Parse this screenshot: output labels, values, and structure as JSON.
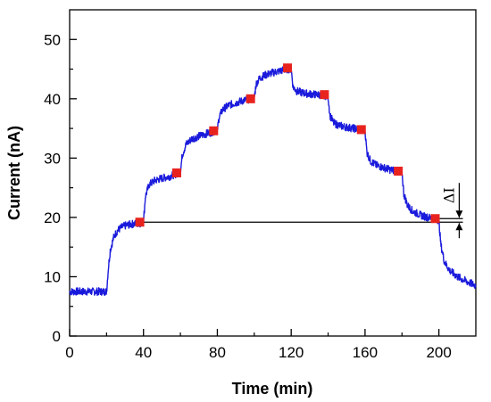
{
  "chart_data": {
    "type": "line",
    "title": "",
    "xlabel": "Time (min)",
    "ylabel": "Current (nA)",
    "xlim": [
      0,
      220
    ],
    "ylim": [
      0,
      55
    ],
    "x_ticks": [
      "0",
      "40",
      "80",
      "120",
      "160",
      "200"
    ],
    "y_ticks": [
      "0",
      "10",
      "20",
      "30",
      "40",
      "50"
    ],
    "grid": false,
    "legend": "none",
    "series": [
      {
        "color": "#1a1adc",
        "x": [
          0,
          20,
          21,
          22,
          24,
          26,
          28,
          30,
          34,
          38,
          40,
          41,
          43,
          46,
          50,
          54,
          58,
          60,
          61,
          63,
          66,
          70,
          74,
          78,
          80,
          81,
          83,
          86,
          90,
          94,
          98,
          100,
          101,
          103,
          106,
          110,
          114,
          118,
          120,
          121,
          123,
          126,
          130,
          134,
          138,
          140,
          141,
          143,
          146,
          150,
          154,
          158,
          160,
          161,
          163,
          166,
          170,
          174,
          178,
          180,
          181,
          183,
          186,
          190,
          194,
          198,
          200,
          201,
          203,
          206,
          210,
          215,
          220
        ],
        "y": [
          7.5,
          7.5,
          11.5,
          14.5,
          16.8,
          17.8,
          18.3,
          18.6,
          18.9,
          19.0,
          19.2,
          23.5,
          25.5,
          26.2,
          26.6,
          26.9,
          27.4,
          27.6,
          30.5,
          32.3,
          33.2,
          33.7,
          34.1,
          34.5,
          34.7,
          37.0,
          38.2,
          38.9,
          39.3,
          39.7,
          40.0,
          40.2,
          42.5,
          43.5,
          44.0,
          44.4,
          44.7,
          45.0,
          45.0,
          42.0,
          41.3,
          41.0,
          40.8,
          40.7,
          40.6,
          40.4,
          37.2,
          35.9,
          35.5,
          35.2,
          35.0,
          34.8,
          34.6,
          31.0,
          29.5,
          28.8,
          28.4,
          28.0,
          27.8,
          27.6,
          24.0,
          22.0,
          21.0,
          20.4,
          20.0,
          19.8,
          19.5,
          15.5,
          12.5,
          11.0,
          10.0,
          9.2,
          8.5
        ]
      }
    ],
    "markers": {
      "color": "#e8231e",
      "x": [
        38,
        58,
        78,
        98,
        118,
        138,
        158,
        178,
        198
      ],
      "y": [
        19.2,
        27.5,
        34.6,
        40.0,
        45.2,
        40.7,
        34.8,
        27.8,
        19.8
      ]
    },
    "reference_line": {
      "y": 19.2,
      "x_start": 38,
      "x_end": 213
    },
    "annotation": {
      "text": "ΔI",
      "x": 211,
      "y_from": 19.2,
      "y_to": 19.8
    }
  }
}
